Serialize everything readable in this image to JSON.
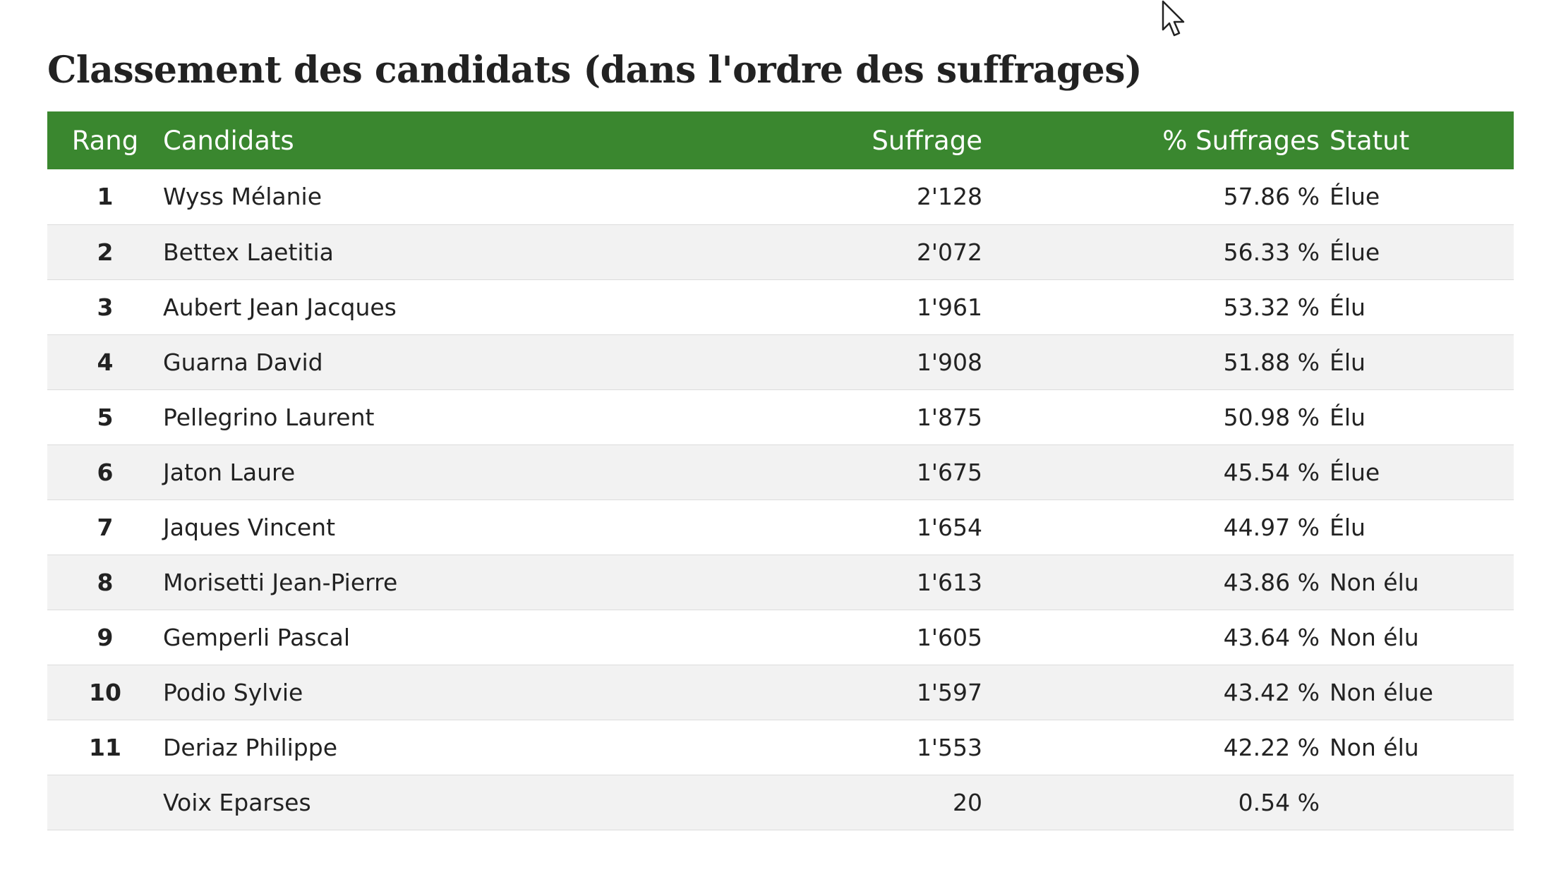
{
  "title": "Classement des candidats (dans l'ordre des suffrages)",
  "colors": {
    "header_bg": "#3a872f",
    "header_text": "#ffffff",
    "row_alt_bg": "#f2f2f2"
  },
  "table": {
    "headers": {
      "rank": "Rang",
      "candidate": "Candidats",
      "votes": "Suffrage",
      "percent": "% Suffrages",
      "status": "Statut"
    },
    "rows": [
      {
        "rank": "1",
        "name": "Wyss Mélanie",
        "votes": "2'128",
        "percent": "57.86 %",
        "status": "Élue"
      },
      {
        "rank": "2",
        "name": "Bettex Laetitia",
        "votes": "2'072",
        "percent": "56.33 %",
        "status": "Élue"
      },
      {
        "rank": "3",
        "name": "Aubert Jean Jacques",
        "votes": "1'961",
        "percent": "53.32 %",
        "status": "Élu"
      },
      {
        "rank": "4",
        "name": "Guarna David",
        "votes": "1'908",
        "percent": "51.88 %",
        "status": "Élu"
      },
      {
        "rank": "5",
        "name": "Pellegrino Laurent",
        "votes": "1'875",
        "percent": "50.98 %",
        "status": "Élu"
      },
      {
        "rank": "6",
        "name": "Jaton Laure",
        "votes": "1'675",
        "percent": "45.54 %",
        "status": "Élue"
      },
      {
        "rank": "7",
        "name": "Jaques Vincent",
        "votes": "1'654",
        "percent": "44.97 %",
        "status": "Élu"
      },
      {
        "rank": "8",
        "name": "Morisetti Jean-Pierre",
        "votes": "1'613",
        "percent": "43.86 %",
        "status": "Non élu"
      },
      {
        "rank": "9",
        "name": "Gemperli Pascal",
        "votes": "1'605",
        "percent": "43.64 %",
        "status": "Non élu"
      },
      {
        "rank": "10",
        "name": "Podio Sylvie",
        "votes": "1'597",
        "percent": "43.42 %",
        "status": "Non élue"
      },
      {
        "rank": "11",
        "name": "Deriaz Philippe",
        "votes": "1'553",
        "percent": "42.22 %",
        "status": "Non élu"
      },
      {
        "rank": "",
        "name": "Voix Eparses",
        "votes": "20",
        "percent": "0.54 %",
        "status": ""
      }
    ]
  },
  "icons": {
    "cursor": "mouse-pointer-icon"
  }
}
